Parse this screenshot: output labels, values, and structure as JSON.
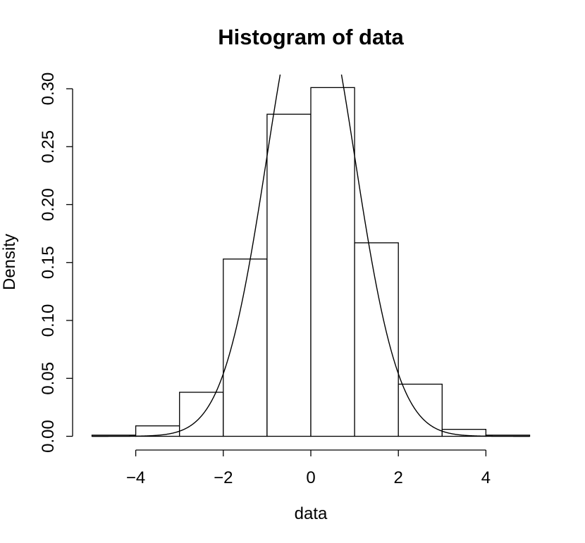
{
  "chart_data": {
    "type": "bar",
    "title": "Histogram of data",
    "xlabel": "data",
    "ylabel": "Density",
    "bins": [
      {
        "from": -5,
        "to": -4,
        "density": 0.001
      },
      {
        "from": -4,
        "to": -3,
        "density": 0.009
      },
      {
        "from": -3,
        "to": -2,
        "density": 0.038
      },
      {
        "from": -2,
        "to": -1,
        "density": 0.153
      },
      {
        "from": -1,
        "to": 0,
        "density": 0.278
      },
      {
        "from": 0,
        "to": 1,
        "density": 0.301
      },
      {
        "from": 1,
        "to": 2,
        "density": 0.167
      },
      {
        "from": 2,
        "to": 3,
        "density": 0.045
      },
      {
        "from": 3,
        "to": 4,
        "density": 0.006
      },
      {
        "from": 4,
        "to": 5,
        "density": 0.001
      }
    ],
    "overlay_curve": {
      "kind": "normal density",
      "mean": 0,
      "sd": 1
    },
    "xlim": [
      -5,
      5
    ],
    "ylim": [
      0,
      0.3
    ],
    "x_ticks": [
      -4,
      -2,
      0,
      2,
      4
    ],
    "x_tick_labels": [
      "−4",
      "−2",
      "0",
      "2",
      "4"
    ],
    "y_ticks": [
      0,
      0.05,
      0.1,
      0.15,
      0.2,
      0.25,
      0.3
    ],
    "y_tick_labels": [
      "0.00",
      "0.05",
      "0.10",
      "0.15",
      "0.20",
      "0.25",
      "0.30"
    ],
    "grid": false,
    "legend": "none"
  }
}
